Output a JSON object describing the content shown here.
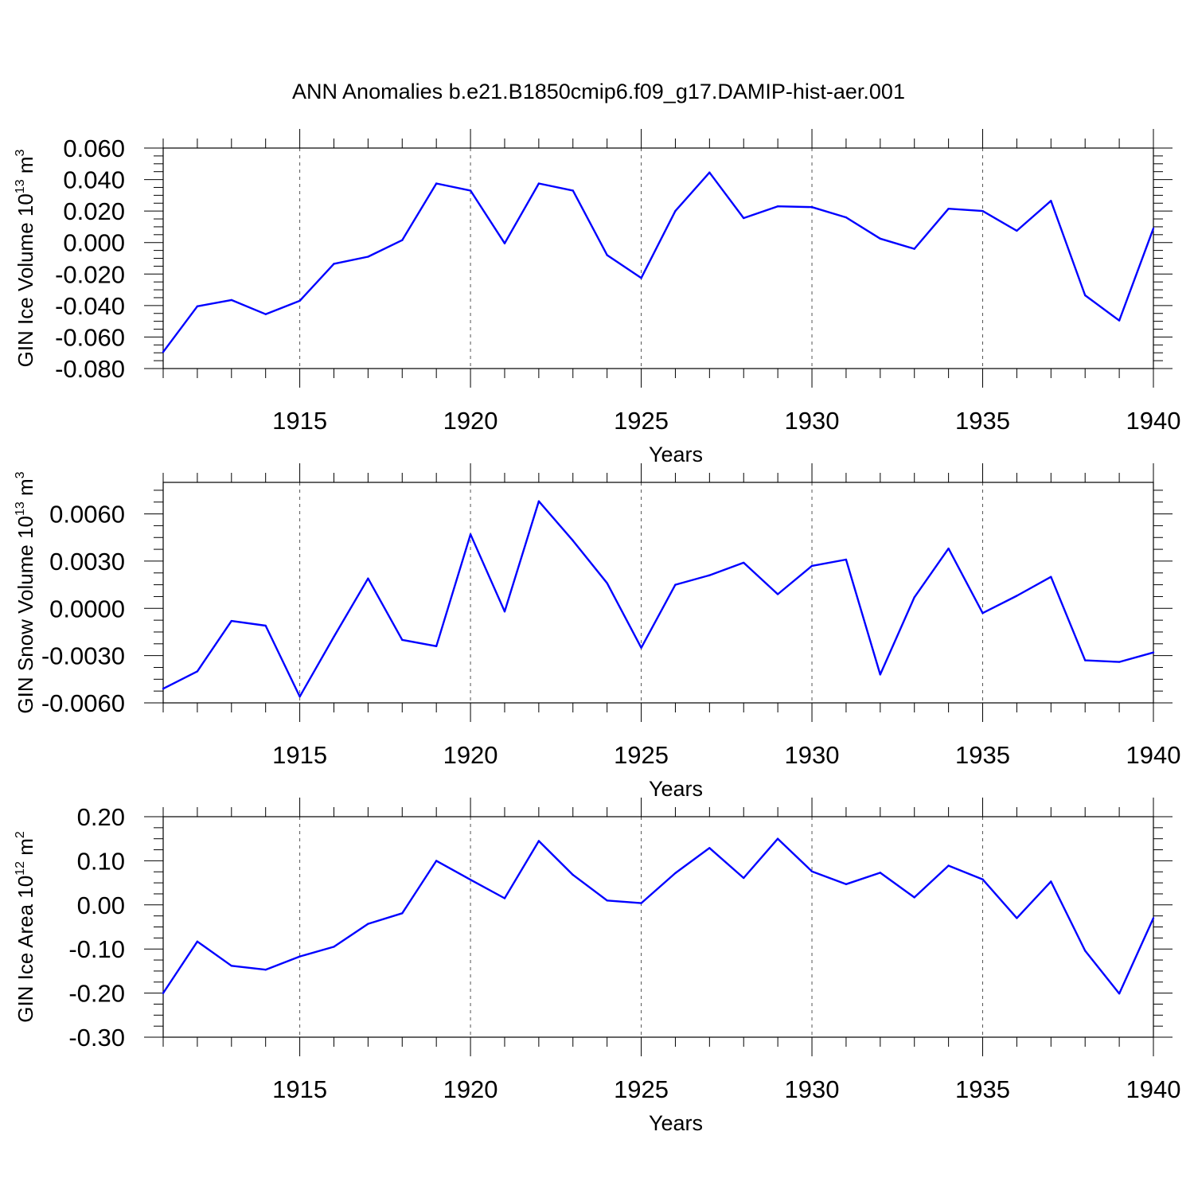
{
  "chart_data": [
    {
      "type": "line",
      "title": "ANN Anomalies b.e21.B1850cmip6.f09_g17.DAMIP-hist-aer.001",
      "ylabel": "GIN Ice Volume 10",
      "ylabel_exp": "13",
      "ylabel_unit": "m",
      "ylabel_unit_exp": "3",
      "xlabel": "Years",
      "x": [
        1911,
        1912,
        1913,
        1914,
        1915,
        1916,
        1917,
        1918,
        1919,
        1920,
        1921,
        1922,
        1923,
        1924,
        1925,
        1926,
        1927,
        1928,
        1929,
        1930,
        1931,
        1932,
        1933,
        1934,
        1935,
        1936,
        1937,
        1938,
        1939,
        1940
      ],
      "values": [
        -0.0695,
        -0.0405,
        -0.0365,
        -0.0455,
        -0.037,
        -0.0135,
        -0.009,
        0.0015,
        0.0375,
        0.033,
        -0.0005,
        0.0375,
        0.033,
        -0.008,
        -0.0225,
        0.02,
        0.0445,
        0.0155,
        0.023,
        0.0225,
        0.016,
        0.0025,
        -0.004,
        0.0215,
        0.02,
        0.0075,
        0.0265,
        -0.0335,
        -0.0495,
        0.009
      ],
      "xlim": [
        1911,
        1940
      ],
      "ylim": [
        -0.08,
        0.06
      ],
      "y_ticks": [
        0.06,
        0.04,
        0.02,
        0.0,
        -0.02,
        -0.04,
        -0.06,
        -0.08
      ],
      "y_tick_labels": [
        "0.060",
        "0.040",
        "0.020",
        "0.000",
        "-0.020",
        "-0.040",
        "-0.060",
        "-0.080"
      ],
      "x_ticks": [
        1915,
        1920,
        1925,
        1930,
        1935,
        1940
      ],
      "x_tick_labels": [
        "1915",
        "1920",
        "1925",
        "1930",
        "1935",
        "1940"
      ]
    },
    {
      "type": "line",
      "ylabel": "GIN Snow Volume 10",
      "ylabel_exp": "13",
      "ylabel_unit": "m",
      "ylabel_unit_exp": "3",
      "xlabel": "Years",
      "x": [
        1911,
        1912,
        1913,
        1914,
        1915,
        1916,
        1917,
        1918,
        1919,
        1920,
        1921,
        1922,
        1923,
        1924,
        1925,
        1926,
        1927,
        1928,
        1929,
        1930,
        1931,
        1932,
        1933,
        1934,
        1935,
        1936,
        1937,
        1938,
        1939,
        1940
      ],
      "values": [
        -0.0051,
        -0.004,
        -0.0008,
        -0.0011,
        -0.0056,
        -0.0018,
        0.0019,
        -0.002,
        -0.0024,
        0.0047,
        -0.0002,
        0.0068,
        0.0043,
        0.0016,
        -0.0025,
        0.0015,
        0.0021,
        0.0029,
        0.0009,
        0.0027,
        0.0031,
        -0.0042,
        0.0007,
        0.0038,
        -0.0003,
        0.0008,
        0.002,
        -0.0033,
        -0.0034,
        -0.0028
      ],
      "xlim": [
        1911,
        1940
      ],
      "ylim": [
        -0.006,
        0.008
      ],
      "y_ticks": [
        0.006,
        0.003,
        0.0,
        -0.003,
        -0.006
      ],
      "y_tick_labels": [
        "0.0060",
        "0.0030",
        "0.0000",
        "-0.0030",
        "-0.0060"
      ],
      "x_ticks": [
        1915,
        1920,
        1925,
        1930,
        1935,
        1940
      ],
      "x_tick_labels": [
        "1915",
        "1920",
        "1925",
        "1930",
        "1935",
        "1940"
      ]
    },
    {
      "type": "line",
      "ylabel": "GIN Ice Area 10",
      "ylabel_exp": "12",
      "ylabel_unit": "m",
      "ylabel_unit_exp": "2",
      "xlabel": "Years",
      "x": [
        1911,
        1912,
        1913,
        1914,
        1915,
        1916,
        1917,
        1918,
        1919,
        1920,
        1921,
        1922,
        1923,
        1924,
        1925,
        1926,
        1927,
        1928,
        1929,
        1930,
        1931,
        1932,
        1933,
        1934,
        1935,
        1936,
        1937,
        1938,
        1939,
        1940
      ],
      "values": [
        -0.2,
        -0.083,
        -0.138,
        -0.147,
        -0.117,
        -0.095,
        -0.043,
        -0.019,
        0.1,
        0.057,
        0.015,
        0.145,
        0.068,
        0.01,
        0.004,
        0.072,
        0.129,
        0.061,
        0.15,
        0.076,
        0.047,
        0.073,
        0.017,
        0.089,
        0.058,
        -0.03,
        0.053,
        -0.104,
        -0.201,
        -0.03
      ],
      "xlim": [
        1911,
        1940
      ],
      "ylim": [
        -0.3,
        0.2
      ],
      "y_ticks": [
        0.2,
        0.1,
        0.0,
        -0.1,
        -0.2,
        -0.3
      ],
      "y_tick_labels": [
        "0.20",
        "0.10",
        "0.00",
        "-0.10",
        "-0.20",
        "-0.30"
      ],
      "x_ticks": [
        1915,
        1920,
        1925,
        1930,
        1935,
        1940
      ],
      "x_tick_labels": [
        "1915",
        "1920",
        "1925",
        "1930",
        "1935",
        "1940"
      ]
    }
  ]
}
